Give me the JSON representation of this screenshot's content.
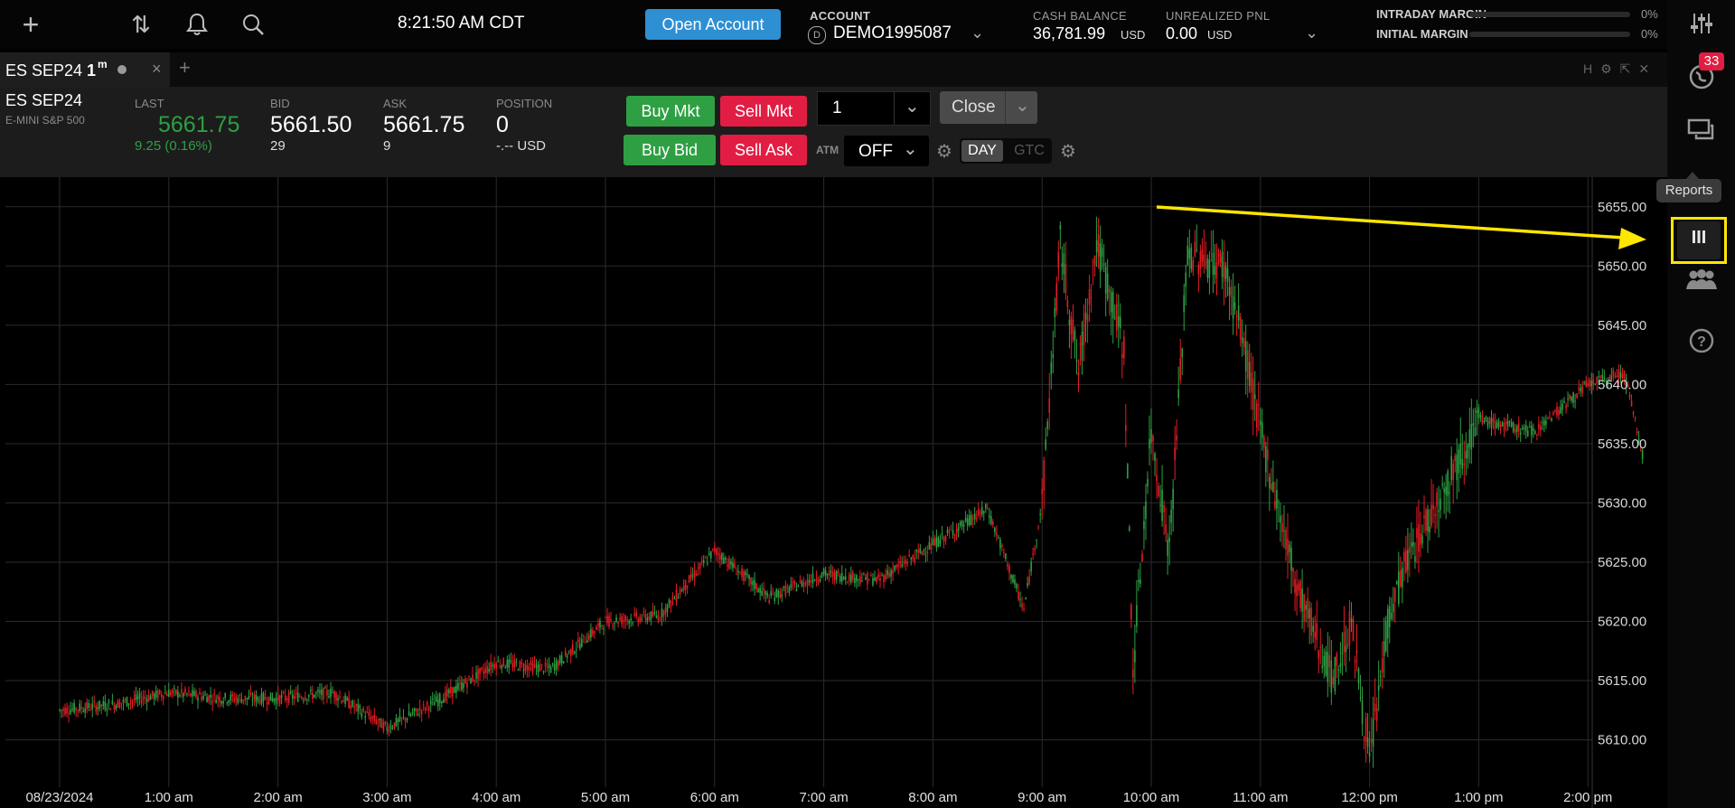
{
  "topbar": {
    "icons": [
      "plus-icon",
      "transfer-arrows-icon",
      "bell-icon",
      "search-icon"
    ],
    "clock": "8:21:50 AM CDT",
    "open_account": "Open Account",
    "account_label": "ACCOUNT",
    "account_value": "DEMO1995087",
    "account_badge": "D",
    "cash_label": "CASH BALANCE",
    "cash_value": "36,781.99",
    "cash_unit": "USD",
    "pnl_label": "UNREALIZED PNL",
    "pnl_value": "0.00",
    "pnl_unit": "USD",
    "intraday_margin_label": "INTRADAY MARGIN",
    "intraday_margin_pct": "0%",
    "intraday_margin_fill": 0,
    "initial_margin_label": "INITIAL MARGIN",
    "initial_margin_pct": "0%",
    "initial_margin_fill": 0
  },
  "tab": {
    "symbol": "ES SEP24",
    "interval": "1",
    "interval_unit": "m"
  },
  "quote": {
    "symbol": "ES SEP24",
    "description": "E-MINI S&P 500",
    "last_label": "LAST",
    "last_value": "5661.75",
    "last_change": "9.25 (0.16%)",
    "bid_label": "BID",
    "bid_value": "5661.50",
    "bid_size": "29",
    "ask_label": "ASK",
    "ask_value": "5661.75",
    "ask_size": "9",
    "position_label": "POSITION",
    "position_value": "0",
    "position_pnl": "-.-- USD"
  },
  "order": {
    "buy_mkt": "Buy Mkt",
    "sell_mkt": "Sell Mkt",
    "buy_bid": "Buy Bid",
    "sell_ask": "Sell Ask",
    "quantity": "1",
    "close": "Close",
    "atm_label": "ATM",
    "atm_value": "OFF",
    "tif_day": "DAY",
    "tif_gtc": "GTC"
  },
  "sidebar": {
    "notification_count": "33",
    "tooltip": "Reports",
    "icons": [
      "settings-sliders-icon",
      "globe-icon",
      "chat-icon",
      "reports-icon",
      "users-icon",
      "help-icon"
    ]
  },
  "colors": {
    "accent_blue": "#2f8fd3",
    "buy_green": "#2ea043",
    "sell_red": "#e21d43",
    "highlight_yellow": "#ffe600",
    "up_candle": "#2ea043",
    "down_candle": "#e21d23"
  },
  "chart_data": {
    "type": "candlestick",
    "x_tick_labels": [
      "08/23/2024",
      "1:00 am",
      "2:00 am",
      "3:00 am",
      "4:00 am",
      "5:00 am",
      "6:00 am",
      "7:00 am",
      "8:00 am",
      "9:00 am",
      "10:00 am",
      "11:00 am",
      "12:00 pm",
      "1:00 pm",
      "2:00 pm"
    ],
    "y_tick_labels": [
      "5655.00",
      "5650.00",
      "5645.00",
      "5640.00",
      "5635.00",
      "5630.00",
      "5625.00",
      "5620.00",
      "5615.00",
      "5610.00"
    ],
    "ylim": [
      5606,
      5657.5
    ],
    "grid": true,
    "x": [
      "00:00",
      "00:30",
      "01:00",
      "01:30",
      "02:00",
      "02:30",
      "03:00",
      "03:30",
      "04:00",
      "04:30",
      "05:00",
      "05:30",
      "06:00",
      "06:30",
      "07:00",
      "07:30",
      "08:00",
      "08:30",
      "08:50",
      "09:00",
      "09:10",
      "09:20",
      "09:30",
      "09:45",
      "09:50",
      "10:00",
      "10:10",
      "10:20",
      "10:40",
      "10:50",
      "11:00",
      "11:20",
      "11:40",
      "11:50",
      "12:00",
      "12:10",
      "12:20",
      "12:30",
      "13:00",
      "13:30",
      "14:00",
      "14:20",
      "14:30"
    ],
    "values": [
      5612.5,
      5613,
      5614,
      5613.5,
      5613.5,
      5614,
      5611,
      5613.5,
      5616.5,
      5616,
      5620,
      5620.5,
      5626,
      5622,
      5624,
      5623.5,
      5626.5,
      5629.5,
      5621,
      5630,
      5652,
      5641,
      5652,
      5643,
      5616,
      5636,
      5626,
      5651,
      5650,
      5644,
      5636,
      5623,
      5615,
      5620,
      5608,
      5620,
      5625,
      5628,
      5637,
      5636,
      5640,
      5641,
      5634
    ]
  }
}
